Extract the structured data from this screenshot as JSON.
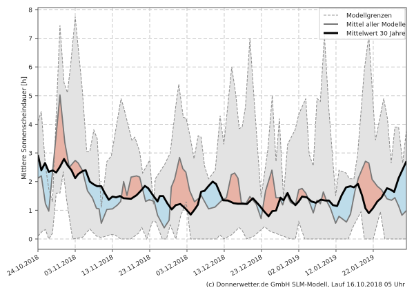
{
  "chart_data": {
    "type": "area",
    "title": "",
    "ylabel": "Mittlere Sonnenscheindauer [h]",
    "xlabel": "",
    "xlim": [
      0,
      98.9
    ],
    "ylim": [
      -0.36,
      8.07
    ],
    "y_ticks": [
      0,
      1,
      2,
      3,
      4,
      5,
      6,
      7,
      8
    ],
    "x_ticks": [
      0,
      10,
      20,
      30,
      40,
      50,
      60,
      70,
      80,
      90
    ],
    "x_tick_labels": [
      "24.10.2018",
      "03.11.2018",
      "13.11.2018",
      "23.11.2018",
      "03.12.2018",
      "13.12.2018",
      "23.12.2018",
      "02.01.2019",
      "12.01.2019",
      "22.01.2019"
    ],
    "x_unit": "days since 24.10.2018",
    "grid": true,
    "legend_position": "top-right",
    "legend": [
      "Modellgrenzen",
      "Mittel aller Modelle",
      "Mittelwert 30 Jahre"
    ],
    "colors": {
      "band": "#e3e3e3",
      "band_edge": "#8a8a8a",
      "model_mean": "#777777",
      "climate": "#000000",
      "above": "#e8b3a6",
      "below": "#bddcea"
    },
    "series": [
      {
        "name": "Modellgrenzen max",
        "points": [
          [
            0,
            4.1
          ],
          [
            0.9,
            4.45
          ],
          [
            2,
            2.55
          ],
          [
            2.9,
            1.75
          ],
          [
            3.9,
            1.3
          ],
          [
            5.9,
            7.45
          ],
          [
            7,
            5.45
          ],
          [
            7.9,
            5.1
          ],
          [
            8.8,
            6.1
          ],
          [
            10,
            7.75
          ],
          [
            11.9,
            5.2
          ],
          [
            13.1,
            3.05
          ],
          [
            13.9,
            3.05
          ],
          [
            15,
            3.8
          ],
          [
            15.9,
            3.5
          ],
          [
            17,
            1.1
          ],
          [
            18.5,
            2.7
          ],
          [
            19.7,
            2.9
          ],
          [
            22.3,
            4.9
          ],
          [
            23,
            4.6
          ],
          [
            25.2,
            3.45
          ],
          [
            26,
            3.55
          ],
          [
            27.3,
            3.05
          ],
          [
            28.1,
            2.3
          ],
          [
            30,
            2.75
          ],
          [
            31,
            1.2
          ],
          [
            31.5,
            2.1
          ],
          [
            34,
            2.6
          ],
          [
            35.5,
            3.0
          ],
          [
            37,
            4.65
          ],
          [
            37.8,
            5.4
          ],
          [
            39,
            4.25
          ],
          [
            39.8,
            4.2
          ],
          [
            40.8,
            3.6
          ],
          [
            41.9,
            2.8
          ],
          [
            43,
            3.6
          ],
          [
            43.8,
            3.55
          ],
          [
            44.7,
            2.55
          ],
          [
            45.8,
            2.1
          ],
          [
            47.6,
            2.4
          ],
          [
            48.9,
            4.3
          ],
          [
            49.9,
            3.3
          ],
          [
            52,
            6.0
          ],
          [
            53.1,
            5.05
          ],
          [
            54,
            3.85
          ],
          [
            54.8,
            3.9
          ],
          [
            55.7,
            4.6
          ],
          [
            56.9,
            7.0
          ],
          [
            58,
            4.9
          ],
          [
            59.9,
            1.45
          ],
          [
            61.7,
            3.1
          ],
          [
            62.9,
            5.0
          ],
          [
            63.9,
            2.7
          ],
          [
            64.8,
            4.2
          ],
          [
            65.9,
            1.45
          ],
          [
            67,
            3.3
          ],
          [
            68.2,
            3.6
          ],
          [
            69,
            3.8
          ],
          [
            70,
            4.35
          ],
          [
            71.9,
            4.9
          ],
          [
            72.8,
            2.95
          ],
          [
            73.9,
            2.55
          ],
          [
            74.9,
            4.9
          ],
          [
            75.8,
            4.8
          ],
          [
            76.9,
            7.1
          ],
          [
            78.1,
            4.5
          ],
          [
            79.9,
            1.5
          ],
          [
            80.8,
            2.4
          ],
          [
            82.7,
            2.3
          ],
          [
            83.6,
            2.1
          ],
          [
            84.8,
            2.1
          ],
          [
            85.8,
            2.95
          ],
          [
            87.6,
            5.9
          ],
          [
            88.8,
            7.1
          ],
          [
            90.6,
            3.45
          ],
          [
            92.8,
            4.9
          ],
          [
            93.8,
            4.2
          ],
          [
            94.8,
            2.65
          ],
          [
            95.8,
            3.9
          ],
          [
            96.8,
            3.9
          ],
          [
            97.9,
            2.65
          ],
          [
            98.9,
            3.8
          ]
        ]
      },
      {
        "name": "Modellgrenzen min",
        "points": [
          [
            0,
            0.1
          ],
          [
            1.2,
            0.27
          ],
          [
            2,
            0.33
          ],
          [
            2.9,
            0.0
          ],
          [
            3.9,
            0.2
          ],
          [
            4.9,
            1.6
          ],
          [
            5.9,
            1.6
          ],
          [
            6.8,
            2.35
          ],
          [
            7.7,
            1.35
          ],
          [
            9.3,
            0.0
          ],
          [
            11.9,
            0.05
          ],
          [
            13.9,
            0.35
          ],
          [
            15.7,
            0.1
          ],
          [
            17,
            0.05
          ],
          [
            18.3,
            0.1
          ],
          [
            19.4,
            0.15
          ],
          [
            20.6,
            0.15
          ],
          [
            22.2,
            0.0
          ],
          [
            24.9,
            0.0
          ],
          [
            27,
            0.2
          ],
          [
            27.9,
            0.4
          ],
          [
            29.2,
            0.0
          ],
          [
            30.7,
            0.6
          ],
          [
            31.6,
            0.6
          ],
          [
            33.4,
            0.0
          ],
          [
            34.5,
            0.0
          ],
          [
            35.5,
            0.49
          ],
          [
            37,
            0.0
          ],
          [
            38.3,
            0.8
          ],
          [
            39.8,
            1.3
          ],
          [
            41,
            0.0
          ],
          [
            48,
            0.0
          ],
          [
            48.8,
            0.15
          ],
          [
            49.9,
            0.0
          ],
          [
            52,
            0.15
          ],
          [
            54,
            0.4
          ],
          [
            54.8,
            0.3
          ],
          [
            56,
            0.0
          ],
          [
            58,
            0.1
          ],
          [
            60.8,
            0.43
          ],
          [
            62.3,
            0.27
          ],
          [
            64.8,
            0.15
          ],
          [
            67.9,
            0.0
          ],
          [
            69.1,
            0.0
          ],
          [
            70,
            0.6
          ],
          [
            71.6,
            0.0
          ],
          [
            83.3,
            0.0
          ],
          [
            84.5,
            0.4
          ],
          [
            86.7,
            0.95
          ],
          [
            87.6,
            0.0
          ],
          [
            90,
            0.0
          ],
          [
            91.9,
            0.95
          ],
          [
            93.1,
            0.0
          ],
          [
            98.9,
            0.0
          ]
        ]
      },
      {
        "name": "Mittel aller Modelle",
        "points": [
          [
            0,
            2.12
          ],
          [
            0.9,
            2.2
          ],
          [
            2,
            1.23
          ],
          [
            2.9,
            0.97
          ],
          [
            5.9,
            5.02
          ],
          [
            7.2,
            3.37
          ],
          [
            8.4,
            2.5
          ],
          [
            10,
            2.74
          ],
          [
            10.8,
            2.65
          ],
          [
            11.9,
            2.4
          ],
          [
            13.3,
            1.68
          ],
          [
            14.6,
            1.44
          ],
          [
            15.7,
            1.07
          ],
          [
            16.4,
            1.05
          ],
          [
            17,
            0.55
          ],
          [
            18.5,
            1.03
          ],
          [
            20,
            1.05
          ],
          [
            21.3,
            1.18
          ],
          [
            22.2,
            1.31
          ],
          [
            23,
            2.0
          ],
          [
            23.9,
            1.52
          ],
          [
            25,
            2.16
          ],
          [
            26.5,
            2.2
          ],
          [
            27.3,
            2.16
          ],
          [
            28.9,
            1.31
          ],
          [
            29.9,
            1.37
          ],
          [
            31.2,
            1.31
          ],
          [
            32.1,
            0.83
          ],
          [
            33.9,
            0.39
          ],
          [
            35.2,
            0.65
          ],
          [
            35.8,
            1.81
          ],
          [
            36.7,
            2.1
          ],
          [
            38,
            2.84
          ],
          [
            38.9,
            2.45
          ],
          [
            39.7,
            2.33
          ],
          [
            40.7,
            1.69
          ],
          [
            42,
            1.3
          ],
          [
            43.5,
            1.45
          ],
          [
            43.8,
            1.52
          ],
          [
            45.8,
            1.05
          ],
          [
            47.5,
            1.11
          ],
          [
            49.4,
            1.35
          ],
          [
            50.6,
            1.44
          ],
          [
            51.9,
            2.24
          ],
          [
            52.8,
            2.3
          ],
          [
            53.7,
            2.12
          ],
          [
            54.6,
            1.27
          ],
          [
            55.8,
            1.23
          ],
          [
            56.9,
            1.48
          ],
          [
            58.6,
            1.21
          ],
          [
            59.9,
            0.71
          ],
          [
            61.1,
            1.68
          ],
          [
            62.8,
            2.4
          ],
          [
            63.9,
            1.44
          ],
          [
            64.8,
            1.44
          ],
          [
            65.7,
            1.19
          ],
          [
            66.7,
            1.6
          ],
          [
            67.8,
            1.27
          ],
          [
            69.1,
            1.19
          ],
          [
            70,
            1.72
          ],
          [
            70.9,
            1.76
          ],
          [
            71.9,
            1.6
          ],
          [
            72.8,
            1.31
          ],
          [
            73.9,
            0.91
          ],
          [
            74.9,
            1.35
          ],
          [
            75.8,
            1.23
          ],
          [
            76.6,
            1.64
          ],
          [
            77.4,
            1.35
          ],
          [
            78.5,
            1.07
          ],
          [
            79.9,
            0.55
          ],
          [
            80.8,
            0.79
          ],
          [
            82.8,
            0.59
          ],
          [
            83.9,
            0.87
          ],
          [
            85.1,
            1.68
          ],
          [
            86,
            2.12
          ],
          [
            87.9,
            2.71
          ],
          [
            88.8,
            2.65
          ],
          [
            89.7,
            2.08
          ],
          [
            91.1,
            1.84
          ],
          [
            92.2,
            1.72
          ],
          [
            93.7,
            1.4
          ],
          [
            94.9,
            1.35
          ],
          [
            95.8,
            1.44
          ],
          [
            96.8,
            1.15
          ],
          [
            97.7,
            0.83
          ],
          [
            98.9,
            0.99
          ]
        ]
      },
      {
        "name": "Mittelwert 30 Jahre",
        "points": [
          [
            0,
            2.93
          ],
          [
            0.9,
            2.4
          ],
          [
            1.9,
            2.65
          ],
          [
            2.9,
            2.34
          ],
          [
            3.9,
            2.39
          ],
          [
            4.9,
            2.32
          ],
          [
            5.9,
            2.52
          ],
          [
            7,
            2.79
          ],
          [
            8,
            2.56
          ],
          [
            9,
            2.4
          ],
          [
            10,
            2.12
          ],
          [
            10.8,
            2.26
          ],
          [
            11.9,
            2.36
          ],
          [
            12.8,
            2.4
          ],
          [
            13.9,
            2.0
          ],
          [
            15,
            1.9
          ],
          [
            15.9,
            1.84
          ],
          [
            17,
            1.84
          ],
          [
            17.9,
            1.61
          ],
          [
            19,
            1.37
          ],
          [
            20,
            1.48
          ],
          [
            21,
            1.45
          ],
          [
            22,
            1.5
          ],
          [
            23,
            1.42
          ],
          [
            25,
            1.4
          ],
          [
            26.5,
            1.53
          ],
          [
            27.6,
            1.68
          ],
          [
            28.7,
            1.85
          ],
          [
            29.6,
            1.77
          ],
          [
            30.9,
            1.52
          ],
          [
            32.1,
            1.31
          ],
          [
            32.7,
            1.5
          ],
          [
            33.6,
            1.5
          ],
          [
            34.8,
            1.23
          ],
          [
            35.9,
            1.03
          ],
          [
            37,
            1.18
          ],
          [
            38.2,
            1.22
          ],
          [
            39.5,
            1.07
          ],
          [
            41,
            0.85
          ],
          [
            41.9,
            1.0
          ],
          [
            42.9,
            1.19
          ],
          [
            43.8,
            1.65
          ],
          [
            44.7,
            1.68
          ],
          [
            45.8,
            1.85
          ],
          [
            46.9,
            2.0
          ],
          [
            47.8,
            1.92
          ],
          [
            49.7,
            1.35
          ],
          [
            51,
            1.34
          ],
          [
            52.5,
            1.25
          ],
          [
            53.7,
            1.23
          ],
          [
            54.8,
            1.23
          ],
          [
            56.1,
            1.22
          ],
          [
            57.7,
            1.42
          ],
          [
            59.3,
            1.19
          ],
          [
            60.8,
            0.95
          ],
          [
            61.9,
            0.79
          ],
          [
            62.9,
            0.97
          ],
          [
            63.9,
            0.99
          ],
          [
            65.1,
            1.44
          ],
          [
            65.9,
            1.35
          ],
          [
            67,
            1.6
          ],
          [
            67.9,
            1.35
          ],
          [
            69.1,
            1.18
          ],
          [
            70,
            1.31
          ],
          [
            70.9,
            1.48
          ],
          [
            72.2,
            1.45
          ],
          [
            73.4,
            1.31
          ],
          [
            74.6,
            1.26
          ],
          [
            75.9,
            1.37
          ],
          [
            77.2,
            1.34
          ],
          [
            78.1,
            1.34
          ],
          [
            79.2,
            1.18
          ],
          [
            80.3,
            1.15
          ],
          [
            81.5,
            1.52
          ],
          [
            82.7,
            1.8
          ],
          [
            83.9,
            1.84
          ],
          [
            84.8,
            1.8
          ],
          [
            85.9,
            1.92
          ],
          [
            87,
            1.52
          ],
          [
            87.9,
            1.07
          ],
          [
            88.8,
            0.9
          ],
          [
            89.9,
            1.07
          ],
          [
            91.1,
            1.31
          ],
          [
            92.2,
            1.44
          ],
          [
            93.7,
            1.77
          ],
          [
            94.7,
            1.72
          ],
          [
            95.6,
            1.64
          ],
          [
            96.8,
            2.12
          ],
          [
            98.9,
            2.71
          ]
        ]
      }
    ]
  },
  "footer": {
    "credit": "(c) Donnerwetter.de GmbH SLM-Modell, Lauf 16.10.2018 05 Uhr"
  }
}
